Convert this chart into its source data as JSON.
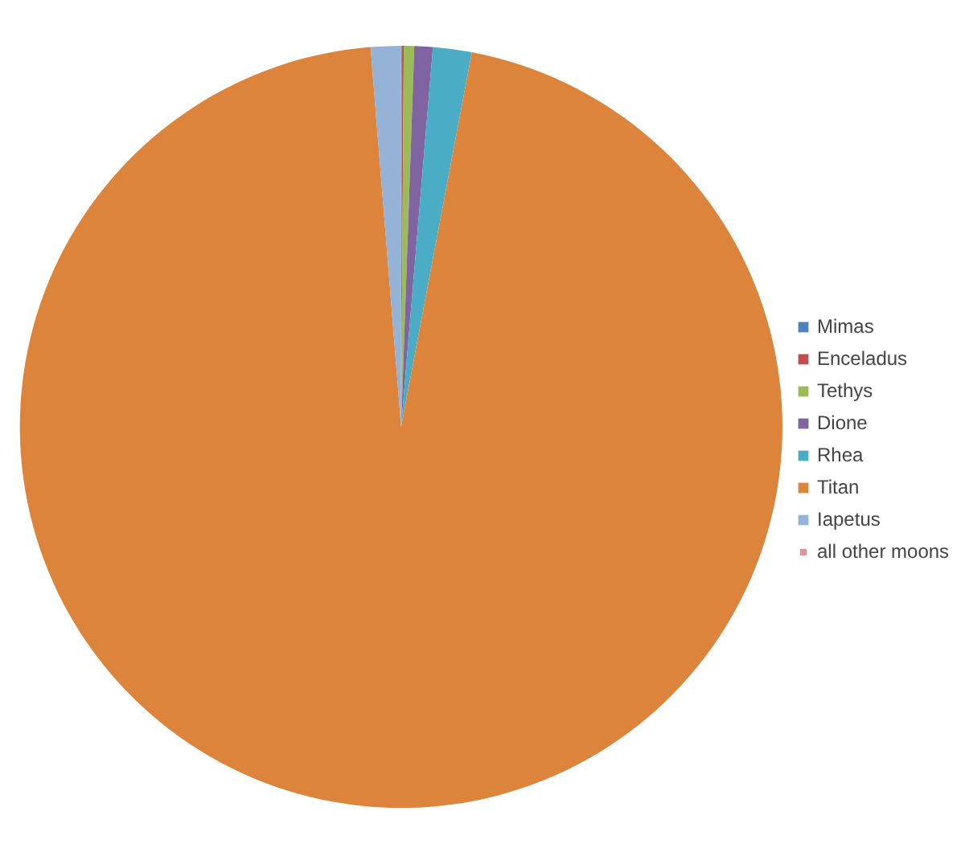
{
  "chart_data": {
    "type": "pie",
    "categories": [
      "Mimas",
      "Enceladus",
      "Tethys",
      "Dione",
      "Rhea",
      "Titan",
      "Iapetus",
      "all other moons"
    ],
    "values": [
      0.03,
      0.08,
      0.44,
      0.78,
      1.64,
      95.75,
      1.28,
      null
    ],
    "colors": [
      "#4f81bd",
      "#c0504d",
      "#9bbb59",
      "#8064a2",
      "#4bacc6",
      "#dc843c",
      "#95b3d7",
      "#d99694"
    ],
    "legend": "right"
  }
}
